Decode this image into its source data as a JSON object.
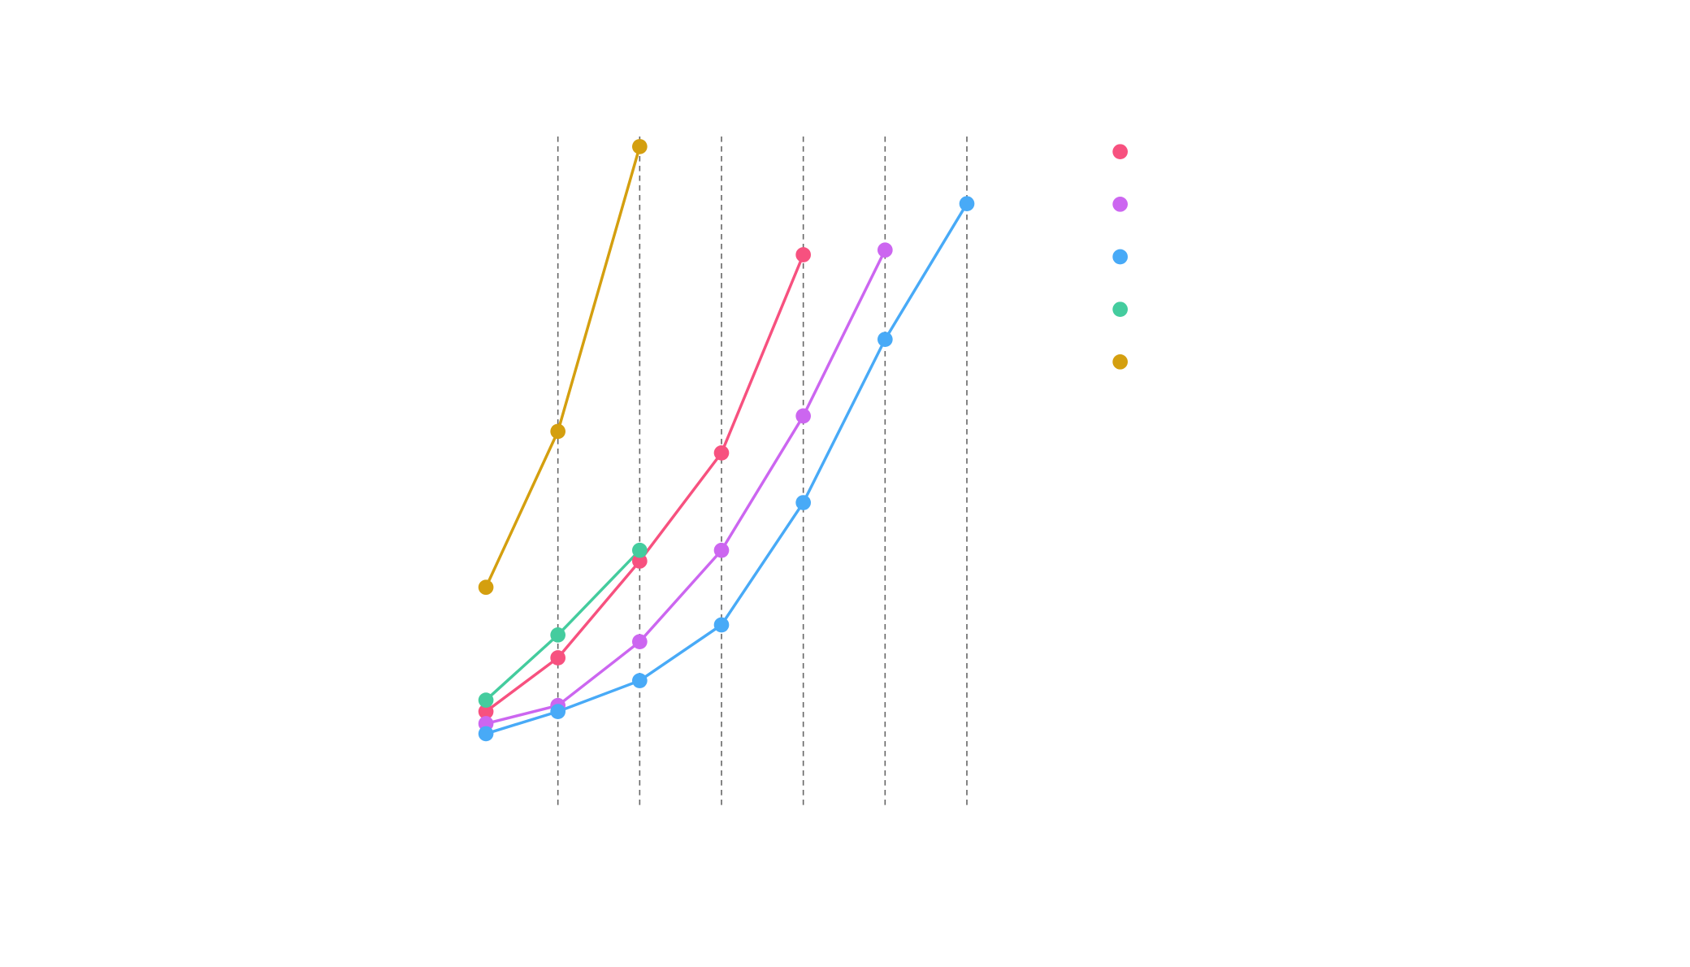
{
  "chart_data": {
    "type": "line",
    "x": [
      0.12,
      1,
      2,
      3,
      4,
      5,
      6
    ],
    "xlim": [
      0,
      7
    ],
    "xticks": [
      1,
      2,
      3,
      4,
      5,
      6
    ],
    "ylim": [
      0,
      100
    ],
    "grid": true,
    "series": [
      {
        "color": "#f7517f",
        "values": [
          14.4,
          22.4,
          36.8,
          52.9,
          82.4,
          null,
          null
        ]
      },
      {
        "color": "#cc66f0",
        "values": [
          12.6,
          15.3,
          24.8,
          38.4,
          58.4,
          83.1,
          null
        ]
      },
      {
        "color": "#48aaf7",
        "values": [
          11.1,
          14.4,
          19.0,
          27.3,
          45.5,
          69.8,
          90.0
        ]
      },
      {
        "color": "#44cc9e",
        "values": [
          16.1,
          25.8,
          38.4,
          null,
          null,
          null,
          null
        ]
      },
      {
        "color": "#d49f0f",
        "values": [
          32.9,
          56.1,
          98.5,
          null,
          null,
          null,
          null
        ]
      }
    ]
  }
}
